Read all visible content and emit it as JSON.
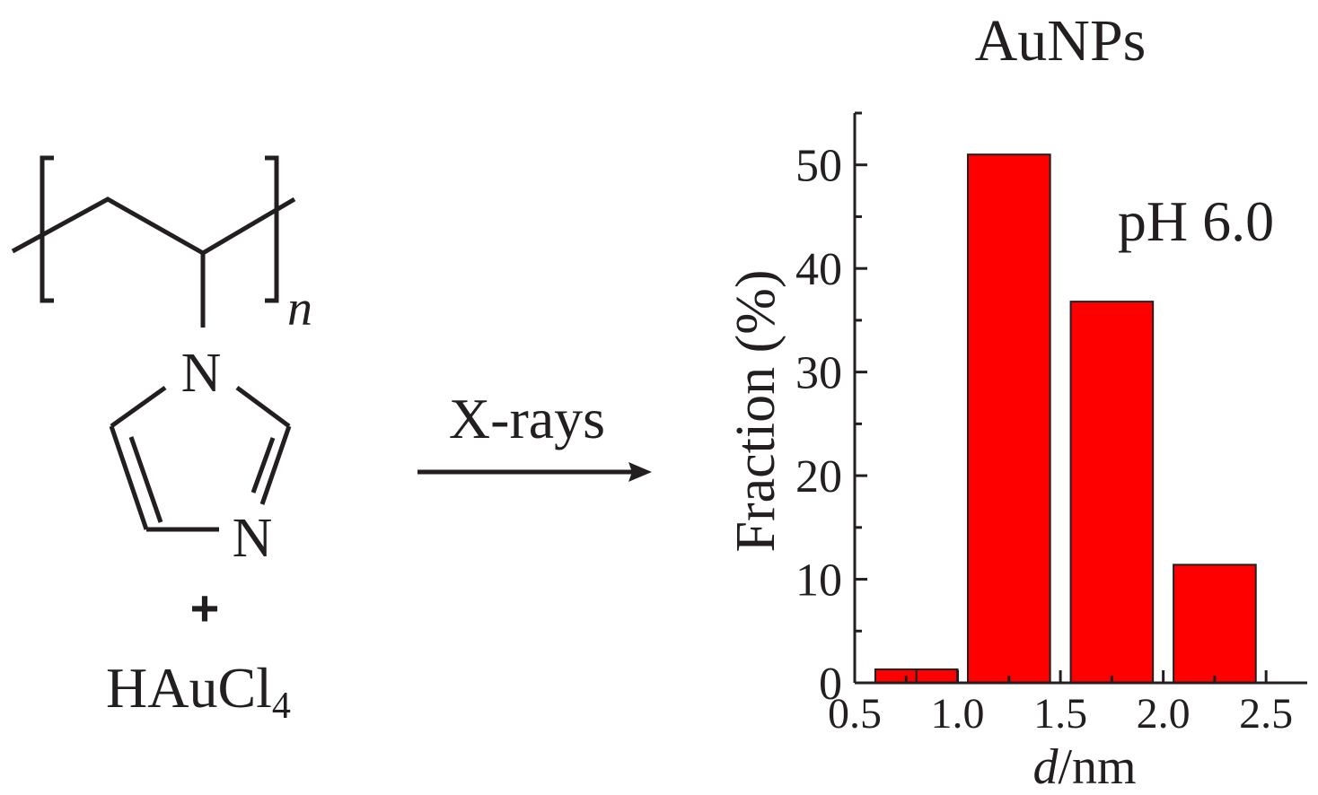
{
  "reaction": {
    "polymer_subscript": "n",
    "ring_atom_top": "N",
    "ring_atom_bottom": "N",
    "plus": "+",
    "reagent_main": "HAuCl",
    "reagent_subscript": "4",
    "arrow_label": "X-rays"
  },
  "chart_data": {
    "type": "bar",
    "title": "AuNPs",
    "annotation": "pH 6.0",
    "xlabel_italic": "d",
    "xlabel_rest": "/nm",
    "ylabel": "Fraction (%)",
    "xlim": [
      0.5,
      2.7
    ],
    "ylim": [
      0,
      55
    ],
    "xticks": [
      0.5,
      1.0,
      1.5,
      2.0,
      2.5
    ],
    "xtick_labels": [
      "0.5",
      "1.0",
      "1.5",
      "2.0",
      "2.5"
    ],
    "yticks": [
      0,
      10,
      20,
      30,
      40,
      50
    ],
    "ytick_labels": [
      "0",
      "10",
      "20",
      "30",
      "40",
      "50"
    ],
    "bars": [
      {
        "x0": 0.6,
        "x1": 0.8,
        "value": 1.3
      },
      {
        "x0": 0.8,
        "x1": 1.0,
        "value": 1.3
      },
      {
        "x0": 1.05,
        "x1": 1.45,
        "value": 51
      },
      {
        "x0": 1.55,
        "x1": 1.95,
        "value": 36.8
      },
      {
        "x0": 2.05,
        "x1": 2.45,
        "value": 11.4
      }
    ],
    "bar_color": "#ff0000"
  }
}
